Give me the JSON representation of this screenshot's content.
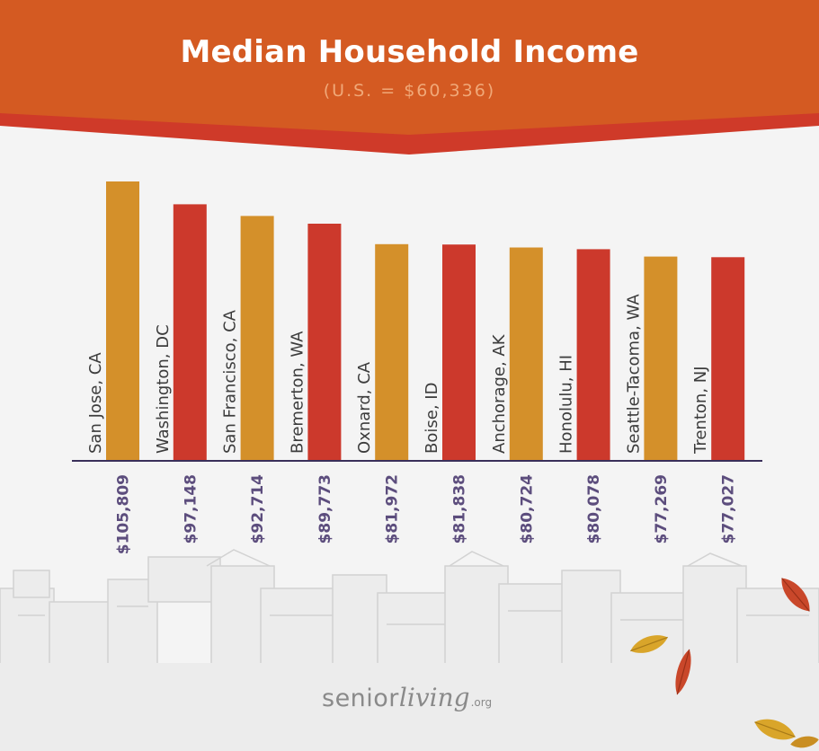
{
  "header": {
    "title": "Median Household Income",
    "subtitle": "(U.S. = $60,336)"
  },
  "colors": {
    "header_orange": "#d45a22",
    "header_red": "#cf3a29",
    "bar_gold": "#d4902a",
    "bar_red": "#cc392c",
    "axis": "#3a2f5a",
    "value_text": "#5c4d7d"
  },
  "chart_data": {
    "type": "bar",
    "categories": [
      "San Jose, CA",
      "Washington, DC",
      "San Francisco, CA",
      "Bremerton, WA",
      "Oxnard, CA",
      "Boise, ID",
      "Anchorage, AK",
      "Honolulu, HI",
      "Seattle-Tacoma, WA",
      "Trenton, NJ"
    ],
    "values": [
      105809,
      97148,
      92714,
      89773,
      81972,
      81838,
      80724,
      80078,
      77269,
      77027
    ],
    "value_labels": [
      "$105,809",
      "$97,148",
      "$92,714",
      "$89,773",
      "$81,972",
      "$81,838",
      "$80,724",
      "$80,078",
      "$77,269",
      "$77,027"
    ],
    "bar_colors": [
      "#d4902a",
      "#cc392c",
      "#d4902a",
      "#cc392c",
      "#d4902a",
      "#cc392c",
      "#d4902a",
      "#cc392c",
      "#d4902a",
      "#cc392c"
    ],
    "title": "Median Household Income",
    "subtitle": "(U.S. = $60,336)",
    "ylim": [
      0,
      105809
    ],
    "grid": false,
    "legend": "none"
  },
  "footer": {
    "logo_part1": "senior",
    "logo_part2": "living",
    "logo_part3": ".org"
  },
  "icons": [
    "city-skyline-icon",
    "autumn-leaf-icon"
  ]
}
